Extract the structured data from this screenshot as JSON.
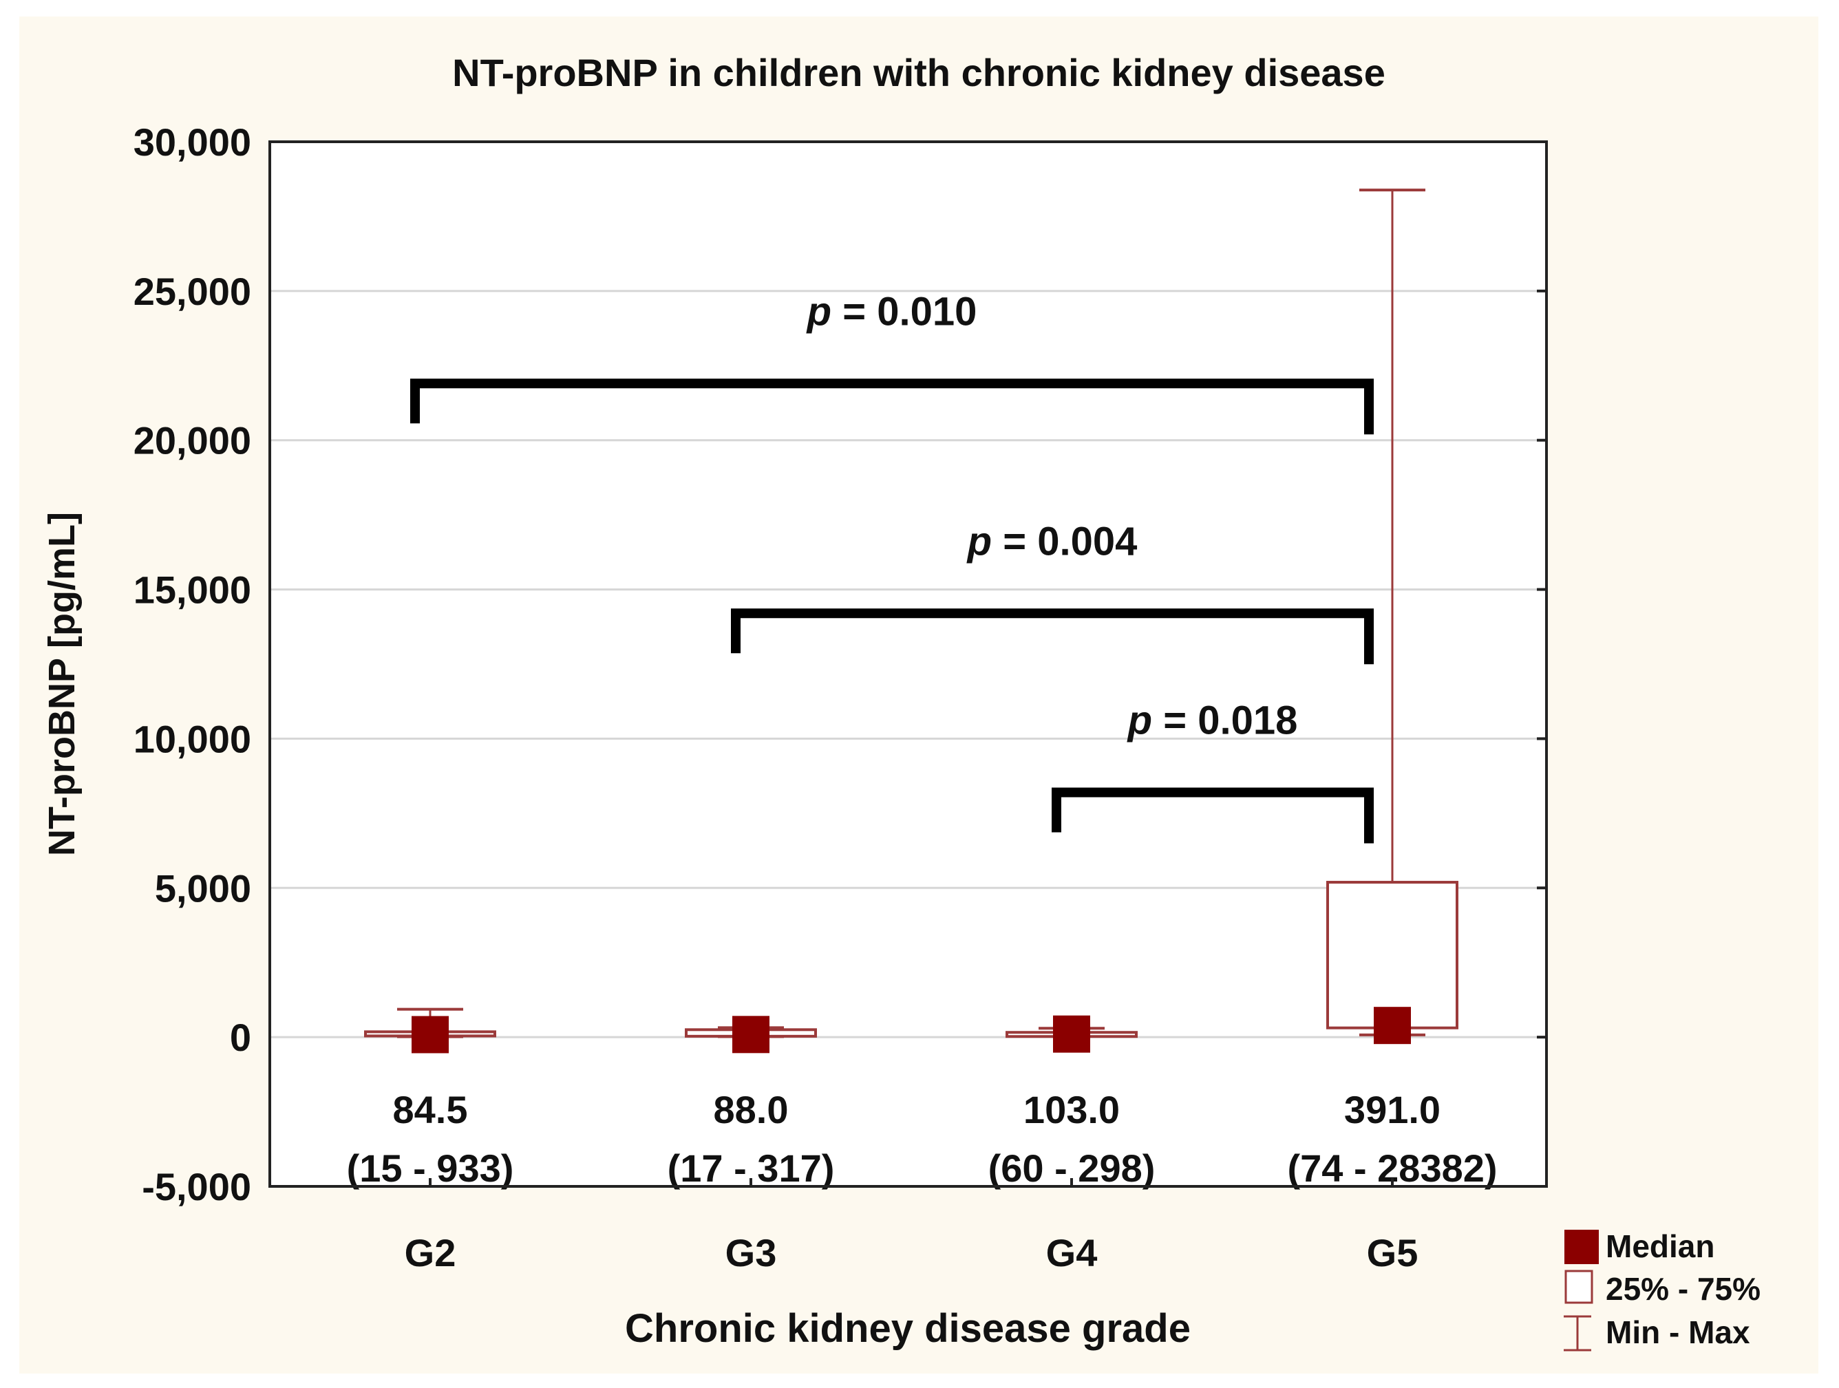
{
  "chart_data": {
    "type": "box",
    "title": "NT-proBNP in children with chronic kidney disease",
    "xlabel": "Chronic kidney disease grade",
    "ylabel": "NT-proBNP [pg/mL]",
    "ylim": [
      -5000,
      30000
    ],
    "yticks": [
      -5000,
      0,
      5000,
      10000,
      15000,
      20000,
      25000,
      30000
    ],
    "ytick_labels": [
      "-5,000",
      "0",
      "5,000",
      "10,000",
      "15,000",
      "20,000",
      "25,000",
      "30,000"
    ],
    "grid": true,
    "categories": [
      "G2",
      "G3",
      "G4",
      "G5"
    ],
    "groups": [
      {
        "name": "G2",
        "median": 84.5,
        "q1": 40,
        "q3": 180,
        "min": 15,
        "max": 933,
        "label_median": "84.5",
        "label_range": "(15 - 933)"
      },
      {
        "name": "G3",
        "median": 88.0,
        "q1": 30,
        "q3": 250,
        "min": 17,
        "max": 317,
        "label_median": "88.0",
        "label_range": "(17 - 317)"
      },
      {
        "name": "G4",
        "median": 103.0,
        "q1": 70,
        "q3": 160,
        "min": 60,
        "max": 298,
        "label_median": "103.0",
        "label_range": "(60 - 298)"
      },
      {
        "name": "G5",
        "median": 391.0,
        "q1": 310,
        "q3": 5190,
        "min": 74,
        "max": 28382,
        "label_median": "391.0",
        "label_range": "(74 - 28382)"
      }
    ],
    "comparisons": [
      {
        "from": "G2",
        "to": "G5",
        "p_symbol": "p",
        "p_text": " = 0.010",
        "level": 21900
      },
      {
        "from": "G3",
        "to": "G5",
        "p_symbol": "p",
        "p_text": " = 0.004",
        "level": 14200
      },
      {
        "from": "G4",
        "to": "G5",
        "p_symbol": "p",
        "p_text": " = 0.018",
        "level": 8200
      }
    ],
    "legend": {
      "position": "bottom-right",
      "items": [
        "Median",
        "25% - 75%",
        "Min - Max"
      ]
    },
    "colors": {
      "series": "#8b0000",
      "box_stroke": "#9b3a3a",
      "bracket": "#000000",
      "background": "#fdf9ef"
    }
  }
}
